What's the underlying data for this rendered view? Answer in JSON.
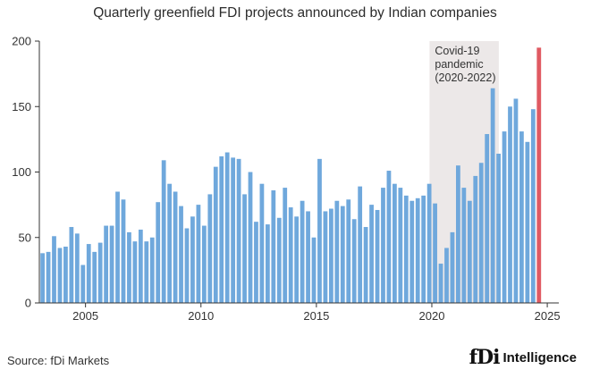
{
  "chart_data": {
    "type": "bar",
    "title": "Quarterly greenfield FDI projects announced by Indian companies",
    "xlabel": "",
    "ylabel": "",
    "ylim": [
      0,
      200
    ],
    "xlim": [
      2003,
      2025.5
    ],
    "yticks": [
      0,
      50,
      100,
      150,
      200
    ],
    "xticks": [
      2005,
      2010,
      2015,
      2020,
      2025
    ],
    "grid": false,
    "colors": {
      "bar": "#6fa8dc",
      "highlight": "#e05a62",
      "shade": "#ece8e8",
      "axis": "#333333"
    },
    "annotation": {
      "lines": [
        "Covid-19",
        "pandemic",
        "(2020-2022)"
      ],
      "x_start": 2019.9,
      "x_end": 2022.9
    },
    "highlight_last": true,
    "x_start": 2003.0,
    "quarter_step": 0.25,
    "values": [
      38,
      39,
      51,
      42,
      43,
      58,
      53,
      29,
      45,
      39,
      46,
      59,
      59,
      85,
      79,
      54,
      47,
      56,
      47,
      50,
      77,
      109,
      91,
      85,
      74,
      57,
      66,
      75,
      59,
      83,
      104,
      112,
      115,
      111,
      110,
      83,
      100,
      62,
      91,
      60,
      86,
      65,
      88,
      73,
      66,
      78,
      70,
      50,
      110,
      70,
      72,
      78,
      74,
      79,
      64,
      89,
      58,
      75,
      71,
      88,
      101,
      91,
      88,
      82,
      78,
      80,
      82,
      91,
      76,
      30,
      42,
      54,
      105,
      88,
      78,
      97,
      107,
      129,
      164,
      114,
      131,
      150,
      156,
      131,
      123,
      148,
      195
    ]
  },
  "source": "Source: fDi Markets",
  "brand": {
    "mark": "fDi",
    "name": "Intelligence"
  }
}
